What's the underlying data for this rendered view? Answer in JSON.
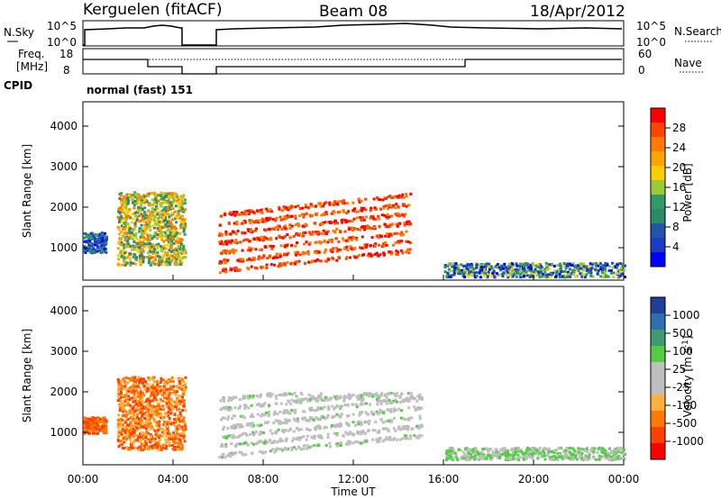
{
  "header": {
    "station": "Kerguelen (fitACF)",
    "beam": "Beam 08",
    "date": "18/Apr/2012"
  },
  "sky_panel": {
    "left_label": "N.Sky",
    "right_label": "N.Search",
    "ticks_left": [
      "10^5",
      "10^0"
    ],
    "ticks_right": [
      "10^5",
      "10^0"
    ]
  },
  "freq_panel": {
    "left_label_1": "Freq.",
    "left_label_2": "[MHz]",
    "right_label": "Nave",
    "ticks_left": [
      "18",
      "8"
    ],
    "ticks_right": [
      "60",
      "0"
    ]
  },
  "cpid": {
    "label": "CPID",
    "value": "normal (fast) 151"
  },
  "chart_data": [
    {
      "type": "heatmap",
      "name": "power",
      "xlabel": "",
      "ylabel": "Slant Range [km]",
      "xlim": [
        0,
        24
      ],
      "ylim": [
        200,
        4600
      ],
      "y_ticks": [
        "1000",
        "2000",
        "3000",
        "4000"
      ],
      "colorbar_label": "Power [dB]",
      "colorbar_ticks": [
        "28",
        "24",
        "20",
        "16",
        "12",
        "8",
        "4"
      ],
      "colorbar_colors": [
        "#ff0000",
        "#ff4400",
        "#ff7a00",
        "#ffa500",
        "#ffcc00",
        "#99cc33",
        "#339966",
        "#2a8a6a",
        "#2255aa",
        "#1a3dc8",
        "#0000ff"
      ],
      "data_gap_hours": [
        4.5,
        5.9
      ],
      "features": [
        {
          "label": "early scatter",
          "x": [
            0.0,
            1.0
          ],
          "y": [
            900,
            1400
          ],
          "level": "8-12"
        },
        {
          "label": "pre-gap patch",
          "x": [
            1.5,
            4.5
          ],
          "y": [
            600,
            2400
          ],
          "level": "12-24"
        },
        {
          "label": "main echo arcs",
          "x": [
            6.0,
            14.5
          ],
          "y": [
            400,
            2400
          ],
          "level": "20-28"
        },
        {
          "label": "near-range band",
          "x": [
            16.0,
            24.0
          ],
          "y": [
            300,
            650
          ],
          "level": "4-16"
        }
      ]
    },
    {
      "type": "heatmap",
      "name": "velocity",
      "xlabel": "Time UT",
      "ylabel": "Slant Range [km]",
      "xlim": [
        0,
        24
      ],
      "ylim": [
        200,
        4600
      ],
      "x_ticks": [
        "00:00",
        "04:00",
        "08:00",
        "12:00",
        "16:00",
        "20:00",
        "00:00"
      ],
      "y_ticks": [
        "1000",
        "2000",
        "3000",
        "4000"
      ],
      "colorbar_label": "Velocity [m s^-1]",
      "colorbar_ticks": [
        "1000",
        "500",
        "100",
        "25",
        "-25",
        "-100",
        "-500",
        "-1000"
      ],
      "colorbar_colors": [
        "#1f3f99",
        "#2f6fb0",
        "#3f9b6f",
        "#55cc44",
        "#bfbfbf",
        "#bfbfbf",
        "#ffb040",
        "#ff7a00",
        "#ff4000",
        "#ff0000"
      ],
      "data_gap_hours": [
        4.5,
        5.9
      ],
      "features": [
        {
          "label": "early scatter",
          "x": [
            0.0,
            1.0
          ],
          "y": [
            1000,
            1400
          ],
          "level": "-100 to -500"
        },
        {
          "label": "pre-gap patch",
          "x": [
            1.5,
            4.5
          ],
          "y": [
            600,
            2400
          ],
          "level": "-25 to -500"
        },
        {
          "label": "ground scatter arcs",
          "x": [
            6.0,
            15.0
          ],
          "y": [
            400,
            2000
          ],
          "level": "-25 to 25"
        },
        {
          "label": "near-range band",
          "x": [
            16.0,
            24.0
          ],
          "y": [
            350,
            650
          ],
          "level": "25 to 100"
        }
      ]
    }
  ]
}
